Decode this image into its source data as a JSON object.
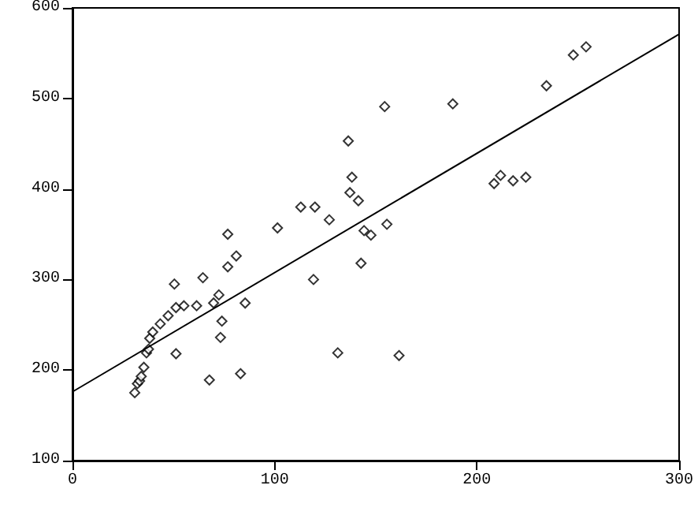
{
  "chart_data": {
    "type": "scatter",
    "grid": false,
    "xlim": [
      0,
      300
    ],
    "xticks": [
      0,
      100,
      200,
      300
    ],
    "ylim": [
      100,
      600
    ],
    "yticks": [
      100,
      200,
      300,
      400,
      500,
      600
    ],
    "series": [
      {
        "marker": "diamond",
        "color": "#000000",
        "x": [
          30.8,
          32.1,
          33.2,
          34,
          35.3,
          36.6,
          37.6,
          38.2,
          39.7,
          43.4,
          47.3,
          50.4,
          51.2,
          51.2,
          55.1,
          61.4,
          64.5,
          67.7,
          69.8,
          72.4,
          73.2,
          73.9,
          76.8,
          76.8,
          81,
          83.1,
          85.4,
          101.4,
          112.9,
          119.9,
          119.2,
          127,
          131.2,
          136.4,
          137.2,
          138.2,
          141.4,
          142.7,
          144.2,
          147.6,
          154.4,
          155.5,
          161.5,
          188.1,
          208.5,
          211.7,
          217.9,
          224.2,
          234.4,
          247.7,
          254
        ],
        "values": [
          175,
          185,
          188,
          193,
          203,
          219,
          223,
          235,
          242,
          251,
          260,
          295,
          269,
          218,
          271,
          271,
          302,
          189,
          274,
          283,
          236,
          254,
          350,
          314,
          326,
          196,
          274,
          357,
          380,
          380,
          300,
          366,
          219,
          453,
          396,
          413,
          387,
          318,
          354,
          349,
          491,
          361,
          216,
          494,
          406,
          415,
          409,
          413,
          514,
          548,
          557
        ]
      },
      {
        "type": "line",
        "marker": "none",
        "color": "#000000",
        "x": [
          0,
          300
        ],
        "values": [
          176,
          571
        ]
      }
    ]
  }
}
